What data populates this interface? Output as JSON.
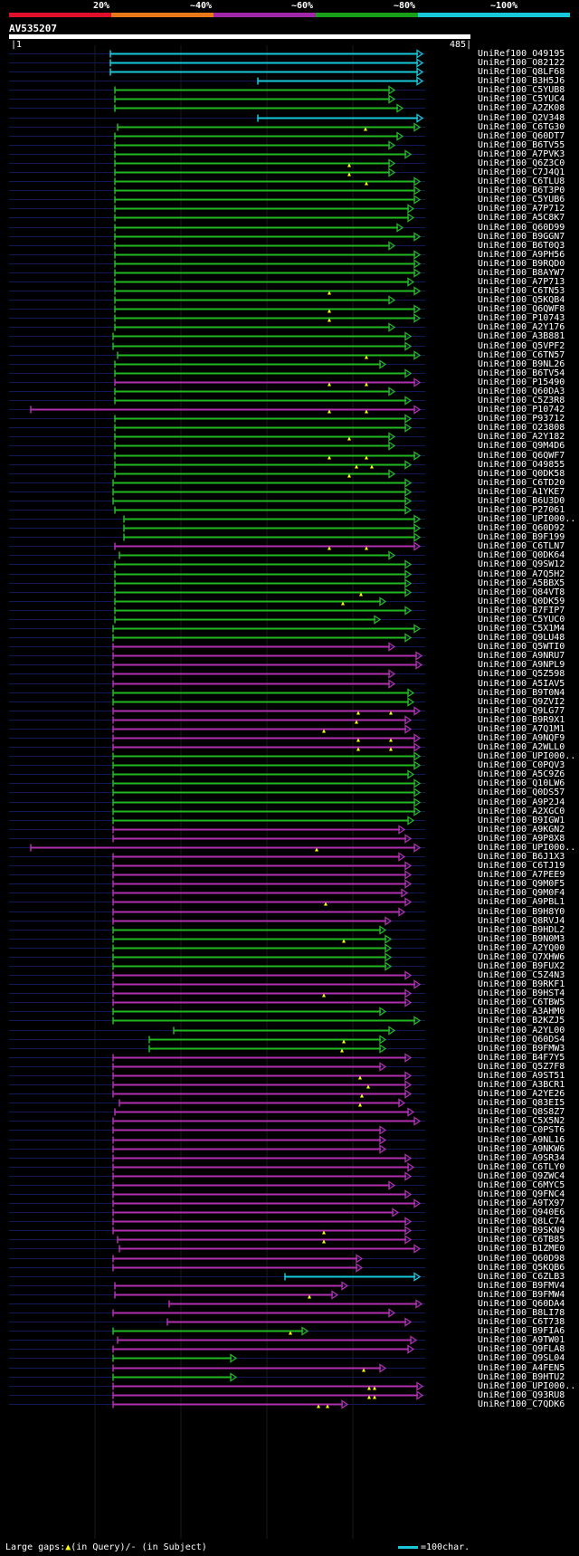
{
  "scale": {
    "labels": [
      "20%",
      "~40%",
      "~60%",
      "~80%",
      "~100%"
    ],
    "colors": [
      "#e0102a",
      "#e87818",
      "#a028a8",
      "#18a018",
      "#18c8d8"
    ]
  },
  "query": {
    "id": "AV535207",
    "start": "1",
    "end": "485"
  },
  "colors": {
    "cyan": "#18c8d8",
    "green": "#22b822",
    "magenta": "#b030b0",
    "gapline": "#101858",
    "gap_marker": "#ffff00"
  },
  "hits": [
    {
      "name": "UniRef100_O49195",
      "c": "c",
      "s": 122,
      "e": 467,
      "g": []
    },
    {
      "name": "UniRef100_O82122",
      "c": "c",
      "s": 122,
      "e": 467,
      "g": []
    },
    {
      "name": "UniRef100_Q8LF68",
      "c": "c",
      "s": 122,
      "e": 467,
      "g": []
    },
    {
      "name": "UniRef100_B3H5J6",
      "c": "c",
      "s": 285,
      "e": 467,
      "g": []
    },
    {
      "name": "UniRef100_C5YUB8",
      "c": "g",
      "s": 127,
      "e": 436,
      "g": []
    },
    {
      "name": "UniRef100_C5YUC4",
      "c": "g",
      "s": 127,
      "e": 436,
      "g": []
    },
    {
      "name": "UniRef100_A2ZK08",
      "c": "g",
      "s": 127,
      "e": 445,
      "g": []
    },
    {
      "name": "UniRef100_Q2V348",
      "c": "c",
      "s": 285,
      "e": 467,
      "g": []
    },
    {
      "name": "UniRef100_C6TG30",
      "c": "g",
      "s": 130,
      "e": 464,
      "g": [
        404
      ]
    },
    {
      "name": "UniRef100_Q60DT7",
      "c": "g",
      "s": 127,
      "e": 445,
      "g": []
    },
    {
      "name": "UniRef100_B6TV55",
      "c": "g",
      "s": 127,
      "e": 436,
      "g": []
    },
    {
      "name": "UniRef100_A7PVK3",
      "c": "g",
      "s": 127,
      "e": 454,
      "g": []
    },
    {
      "name": "UniRef100_Q6Z3C0",
      "c": "g",
      "s": 127,
      "e": 436,
      "g": [
        386
      ]
    },
    {
      "name": "UniRef100_C7J4Q1",
      "c": "g",
      "s": 127,
      "e": 436,
      "g": [
        386
      ]
    },
    {
      "name": "UniRef100_C6TLU8",
      "c": "g",
      "s": 127,
      "e": 464,
      "g": [
        405
      ]
    },
    {
      "name": "UniRef100_B6T3P0",
      "c": "g",
      "s": 127,
      "e": 464,
      "g": []
    },
    {
      "name": "UniRef100_C5YUB6",
      "c": "g",
      "s": 127,
      "e": 464,
      "g": []
    },
    {
      "name": "UniRef100_A7P712",
      "c": "g",
      "s": 127,
      "e": 457,
      "g": []
    },
    {
      "name": "UniRef100_A5C8K7",
      "c": "g",
      "s": 127,
      "e": 457,
      "g": []
    },
    {
      "name": "UniRef100_Q60D99",
      "c": "g",
      "s": 127,
      "e": 445,
      "g": []
    },
    {
      "name": "UniRef100_B9GGN7",
      "c": "g",
      "s": 127,
      "e": 464,
      "g": []
    },
    {
      "name": "UniRef100_B6T0Q3",
      "c": "g",
      "s": 127,
      "e": 436,
      "g": []
    },
    {
      "name": "UniRef100_A9PH56",
      "c": "g",
      "s": 127,
      "e": 464,
      "g": []
    },
    {
      "name": "UniRef100_B9RQD0",
      "c": "g",
      "s": 127,
      "e": 464,
      "g": []
    },
    {
      "name": "UniRef100_B8AYW7",
      "c": "g",
      "s": 127,
      "e": 464,
      "g": []
    },
    {
      "name": "UniRef100_A7P713",
      "c": "g",
      "s": 127,
      "e": 457,
      "g": []
    },
    {
      "name": "UniRef100_C6TN53",
      "c": "g",
      "s": 127,
      "e": 464,
      "g": [
        364
      ]
    },
    {
      "name": "UniRef100_Q5KQB4",
      "c": "g",
      "s": 127,
      "e": 436,
      "g": []
    },
    {
      "name": "UniRef100_Q6QWF8",
      "c": "g",
      "s": 127,
      "e": 464,
      "g": [
        364
      ]
    },
    {
      "name": "UniRef100_P10743",
      "c": "g",
      "s": 127,
      "e": 464,
      "g": [
        364
      ]
    },
    {
      "name": "UniRef100_A2Y176",
      "c": "g",
      "s": 127,
      "e": 436,
      "g": []
    },
    {
      "name": "UniRef100_A3B881",
      "c": "g",
      "s": 125,
      "e": 454,
      "g": []
    },
    {
      "name": "UniRef100_Q5VPF2",
      "c": "g",
      "s": 125,
      "e": 454,
      "g": []
    },
    {
      "name": "UniRef100_C6TN57",
      "c": "g",
      "s": 130,
      "e": 464,
      "g": [
        405
      ]
    },
    {
      "name": "UniRef100_B9NL26",
      "c": "g",
      "s": 127,
      "e": 426,
      "g": []
    },
    {
      "name": "UniRef100_B6TV54",
      "c": "g",
      "s": 127,
      "e": 454,
      "g": []
    },
    {
      "name": "UniRef100_P15490",
      "c": "m",
      "s": 127,
      "e": 464,
      "g": [
        364,
        405
      ]
    },
    {
      "name": "UniRef100_Q60DA3",
      "c": "g",
      "s": 127,
      "e": 436,
      "g": []
    },
    {
      "name": "UniRef100_C5Z3R8",
      "c": "g",
      "s": 127,
      "e": 454,
      "g": []
    },
    {
      "name": "UniRef100_P10742",
      "c": "m",
      "s": 34,
      "e": 464,
      "g": [
        364,
        405
      ]
    },
    {
      "name": "UniRef100_P93712",
      "c": "g",
      "s": 127,
      "e": 454,
      "g": []
    },
    {
      "name": "UniRef100_O23808",
      "c": "g",
      "s": 127,
      "e": 454,
      "g": []
    },
    {
      "name": "UniRef100_A2Y182",
      "c": "g",
      "s": 127,
      "e": 436,
      "g": [
        386
      ]
    },
    {
      "name": "UniRef100_Q9M4D6",
      "c": "g",
      "s": 127,
      "e": 436,
      "g": []
    },
    {
      "name": "UniRef100_Q6QWF7",
      "c": "g",
      "s": 127,
      "e": 464,
      "g": [
        364,
        405
      ]
    },
    {
      "name": "UniRef100_O49855",
      "c": "g",
      "s": 127,
      "e": 454,
      "g": [
        394,
        411
      ]
    },
    {
      "name": "UniRef100_Q0DK58",
      "c": "g",
      "s": 127,
      "e": 436,
      "g": [
        386
      ]
    },
    {
      "name": "UniRef100_C6TD20",
      "c": "g",
      "s": 125,
      "e": 454,
      "g": []
    },
    {
      "name": "UniRef100_A1YKE7",
      "c": "g",
      "s": 125,
      "e": 454,
      "g": []
    },
    {
      "name": "UniRef100_B6U3D0",
      "c": "g",
      "s": 125,
      "e": 454,
      "g": []
    },
    {
      "name": "UniRef100_P27061",
      "c": "g",
      "s": 127,
      "e": 454,
      "g": []
    },
    {
      "name": "UniRef100_UPI000..",
      "c": "g",
      "s": 137,
      "e": 464,
      "g": []
    },
    {
      "name": "UniRef100_Q60D92",
      "c": "g",
      "s": 137,
      "e": 464,
      "g": []
    },
    {
      "name": "UniRef100_B9F199",
      "c": "g",
      "s": 137,
      "e": 464,
      "g": []
    },
    {
      "name": "UniRef100_C6TLN7",
      "c": "m",
      "s": 127,
      "e": 464,
      "g": [
        364,
        405
      ]
    },
    {
      "name": "UniRef100_Q0DK64",
      "c": "g",
      "s": 132,
      "e": 436,
      "g": []
    },
    {
      "name": "UniRef100_Q9SW12",
      "c": "g",
      "s": 127,
      "e": 454,
      "g": []
    },
    {
      "name": "UniRef100_A7Q5H2",
      "c": "g",
      "s": 127,
      "e": 454,
      "g": []
    },
    {
      "name": "UniRef100_A5BBX5",
      "c": "g",
      "s": 127,
      "e": 454,
      "g": []
    },
    {
      "name": "UniRef100_Q84VT8",
      "c": "g",
      "s": 127,
      "e": 454,
      "g": [
        399
      ]
    },
    {
      "name": "UniRef100_Q0DK59",
      "c": "g",
      "s": 127,
      "e": 426,
      "g": [
        379
      ]
    },
    {
      "name": "UniRef100_B7FIP7",
      "c": "g",
      "s": 127,
      "e": 454,
      "g": []
    },
    {
      "name": "UniRef100_C5YUC0",
      "c": "g",
      "s": 127,
      "e": 420,
      "g": []
    },
    {
      "name": "UniRef100_C5X1M4",
      "c": "g",
      "s": 125,
      "e": 464,
      "g": []
    },
    {
      "name": "UniRef100_Q9LU48",
      "c": "g",
      "s": 125,
      "e": 454,
      "g": []
    },
    {
      "name": "UniRef100_Q5WTI0",
      "c": "m",
      "s": 125,
      "e": 436,
      "g": []
    },
    {
      "name": "UniRef100_A9NRU7",
      "c": "m",
      "s": 125,
      "e": 466,
      "g": []
    },
    {
      "name": "UniRef100_A9NPL9",
      "c": "m",
      "s": 125,
      "e": 466,
      "g": []
    },
    {
      "name": "UniRef100_Q5Z598",
      "c": "m",
      "s": 125,
      "e": 436,
      "g": []
    },
    {
      "name": "UniRef100_A5IAV5",
      "c": "m",
      "s": 125,
      "e": 436,
      "g": []
    },
    {
      "name": "UniRef100_B9T0N4",
      "c": "g",
      "s": 125,
      "e": 457,
      "g": []
    },
    {
      "name": "UniRef100_Q9ZVI2",
      "c": "g",
      "s": 125,
      "e": 457,
      "g": []
    },
    {
      "name": "UniRef100_Q9LG77",
      "c": "m",
      "s": 125,
      "e": 464,
      "g": [
        396,
        432
      ]
    },
    {
      "name": "UniRef100_B9R9X1",
      "c": "m",
      "s": 125,
      "e": 454,
      "g": [
        394
      ]
    },
    {
      "name": "UniRef100_A7Q1M1",
      "c": "m",
      "s": 125,
      "e": 454,
      "g": [
        358
      ]
    },
    {
      "name": "UniRef100_A9NQF9",
      "c": "m",
      "s": 125,
      "e": 464,
      "g": [
        396,
        432
      ]
    },
    {
      "name": "UniRef100_A2WLL0",
      "c": "m",
      "s": 125,
      "e": 464,
      "g": [
        396,
        432
      ]
    },
    {
      "name": "UniRef100_UPI000..",
      "c": "g",
      "s": 125,
      "e": 464,
      "g": []
    },
    {
      "name": "UniRef100_C0PQV3",
      "c": "g",
      "s": 125,
      "e": 464,
      "g": []
    },
    {
      "name": "UniRef100_A5C9Z6",
      "c": "g",
      "s": 125,
      "e": 457,
      "g": []
    },
    {
      "name": "UniRef100_Q10LW6",
      "c": "g",
      "s": 125,
      "e": 464,
      "g": []
    },
    {
      "name": "UniRef100_Q0DS57",
      "c": "g",
      "s": 125,
      "e": 464,
      "g": []
    },
    {
      "name": "UniRef100_A9P2J4",
      "c": "g",
      "s": 125,
      "e": 464,
      "g": []
    },
    {
      "name": "UniRef100_A2XGC0",
      "c": "g",
      "s": 125,
      "e": 464,
      "g": []
    },
    {
      "name": "UniRef100_B9IGW1",
      "c": "g",
      "s": 125,
      "e": 457,
      "g": []
    },
    {
      "name": "UniRef100_A9KGN2",
      "c": "m",
      "s": 125,
      "e": 447,
      "g": []
    },
    {
      "name": "UniRef100_A9P8X8",
      "c": "m",
      "s": 125,
      "e": 454,
      "g": []
    },
    {
      "name": "UniRef100_UPI000..",
      "c": "m",
      "s": 34,
      "e": 464,
      "g": [
        350
      ]
    },
    {
      "name": "UniRef100_B6J1X3",
      "c": "m",
      "s": 125,
      "e": 447,
      "g": []
    },
    {
      "name": "UniRef100_C6TJ19",
      "c": "m",
      "s": 125,
      "e": 454,
      "g": []
    },
    {
      "name": "UniRef100_A7PEE9",
      "c": "m",
      "s": 125,
      "e": 454,
      "g": []
    },
    {
      "name": "UniRef100_Q9M0F5",
      "c": "m",
      "s": 125,
      "e": 454,
      "g": []
    },
    {
      "name": "UniRef100_Q9M0F4",
      "c": "m",
      "s": 125,
      "e": 450,
      "g": []
    },
    {
      "name": "UniRef100_A9PBL1",
      "c": "m",
      "s": 125,
      "e": 454,
      "g": [
        360
      ]
    },
    {
      "name": "UniRef100_B9H8Y0",
      "c": "m",
      "s": 125,
      "e": 447,
      "g": []
    },
    {
      "name": "UniRef100_Q8RVJ4",
      "c": "m",
      "s": 125,
      "e": 432,
      "g": []
    },
    {
      "name": "UniRef100_B9HDL2",
      "c": "g",
      "s": 125,
      "e": 426,
      "g": []
    },
    {
      "name": "UniRef100_B9N0M3",
      "c": "g",
      "s": 125,
      "e": 432,
      "g": [
        380
      ]
    },
    {
      "name": "UniRef100_A2YQ00",
      "c": "g",
      "s": 125,
      "e": 432,
      "g": []
    },
    {
      "name": "UniRef100_Q7XHW6",
      "c": "g",
      "s": 125,
      "e": 432,
      "g": []
    },
    {
      "name": "UniRef100_B9FUX2",
      "c": "g",
      "s": 125,
      "e": 432,
      "g": []
    },
    {
      "name": "UniRef100_C5Z4N3",
      "c": "m",
      "s": 125,
      "e": 454,
      "g": []
    },
    {
      "name": "UniRef100_B9RKF1",
      "c": "m",
      "s": 125,
      "e": 464,
      "g": []
    },
    {
      "name": "UniRef100_B9HST4",
      "c": "m",
      "s": 125,
      "e": 454,
      "g": [
        358
      ]
    },
    {
      "name": "UniRef100_C6TBW5",
      "c": "m",
      "s": 125,
      "e": 454,
      "g": []
    },
    {
      "name": "UniRef100_A3AHM0",
      "c": "g",
      "s": 125,
      "e": 426,
      "g": []
    },
    {
      "name": "UniRef100_B2KZJ5",
      "c": "g",
      "s": 125,
      "e": 464,
      "g": []
    },
    {
      "name": "UniRef100_A2YL00",
      "c": "g",
      "s": 192,
      "e": 436,
      "g": []
    },
    {
      "name": "UniRef100_Q60DS4",
      "c": "g",
      "s": 165,
      "e": 426,
      "g": [
        380
      ]
    },
    {
      "name": "UniRef100_B9FMW3",
      "c": "g",
      "s": 165,
      "e": 426,
      "g": [
        378
      ]
    },
    {
      "name": "UniRef100_B4F7Y5",
      "c": "m",
      "s": 125,
      "e": 454,
      "g": []
    },
    {
      "name": "UniRef100_Q5Z7F8",
      "c": "m",
      "s": 125,
      "e": 426,
      "g": []
    },
    {
      "name": "UniRef100_A9ST51",
      "c": "m",
      "s": 125,
      "e": 454,
      "g": [
        398
      ]
    },
    {
      "name": "UniRef100_A3BCR1",
      "c": "m",
      "s": 125,
      "e": 454,
      "g": [
        407
      ]
    },
    {
      "name": "UniRef100_A2YE26",
      "c": "m",
      "s": 125,
      "e": 454,
      "g": [
        400
      ]
    },
    {
      "name": "UniRef100_Q83EI5",
      "c": "m",
      "s": 132,
      "e": 447,
      "g": [
        398
      ]
    },
    {
      "name": "UniRef100_Q8S8Z7",
      "c": "m",
      "s": 127,
      "e": 457,
      "g": []
    },
    {
      "name": "UniRef100_C5X5N2",
      "c": "m",
      "s": 125,
      "e": 464,
      "g": []
    },
    {
      "name": "UniRef100_C0PST6",
      "c": "m",
      "s": 125,
      "e": 426,
      "g": []
    },
    {
      "name": "UniRef100_A9NL16",
      "c": "m",
      "s": 125,
      "e": 426,
      "g": []
    },
    {
      "name": "UniRef100_A9NKW6",
      "c": "m",
      "s": 125,
      "e": 426,
      "g": []
    },
    {
      "name": "UniRef100_A9SR34",
      "c": "m",
      "s": 125,
      "e": 454,
      "g": []
    },
    {
      "name": "UniRef100_C6TLY0",
      "c": "m",
      "s": 125,
      "e": 457,
      "g": []
    },
    {
      "name": "UniRef100_Q9ZWC4",
      "c": "m",
      "s": 125,
      "e": 454,
      "g": []
    },
    {
      "name": "UniRef100_C6MYC5",
      "c": "m",
      "s": 125,
      "e": 436,
      "g": []
    },
    {
      "name": "UniRef100_Q9FNC4",
      "c": "m",
      "s": 125,
      "e": 454,
      "g": []
    },
    {
      "name": "UniRef100_A9TX97",
      "c": "m",
      "s": 125,
      "e": 464,
      "g": []
    },
    {
      "name": "UniRef100_Q940E6",
      "c": "m",
      "s": 125,
      "e": 440,
      "g": []
    },
    {
      "name": "UniRef100_Q8LC74",
      "c": "m",
      "s": 125,
      "e": 454,
      "g": []
    },
    {
      "name": "UniRef100_B9SKN9",
      "c": "m",
      "s": 125,
      "e": 454,
      "g": [
        358
      ]
    },
    {
      "name": "UniRef100_C6TB85",
      "c": "m",
      "s": 130,
      "e": 454,
      "g": [
        358
      ]
    },
    {
      "name": "UniRef100_B1ZME0",
      "c": "m",
      "s": 132,
      "e": 464,
      "g": []
    },
    {
      "name": "UniRef100_Q60D98",
      "c": "m",
      "s": 125,
      "e": 400,
      "g": []
    },
    {
      "name": "UniRef100_Q5KQB6",
      "c": "m",
      "s": 125,
      "e": 400,
      "g": []
    },
    {
      "name": "UniRef100_C6ZLB3",
      "c": "c",
      "s": 315,
      "e": 464,
      "g": []
    },
    {
      "name": "UniRef100_B9FMV4",
      "c": "m",
      "s": 127,
      "e": 384,
      "g": []
    },
    {
      "name": "UniRef100_B9FMW4",
      "c": "m",
      "s": 127,
      "e": 373,
      "g": [
        342
      ]
    },
    {
      "name": "UniRef100_Q60DA4",
      "c": "m",
      "s": 187,
      "e": 466,
      "g": []
    },
    {
      "name": "UniRef100_B8LI78",
      "c": "m",
      "s": 125,
      "e": 436,
      "g": []
    },
    {
      "name": "UniRef100_C6T738",
      "c": "m",
      "s": 185,
      "e": 454,
      "g": []
    },
    {
      "name": "UniRef100_B9FIA6",
      "c": "g",
      "s": 125,
      "e": 340,
      "g": [
        321
      ]
    },
    {
      "name": "UniRef100_A9TW01",
      "c": "m",
      "s": 130,
      "e": 460,
      "g": []
    },
    {
      "name": "UniRef100_Q9FLA8",
      "c": "m",
      "s": 125,
      "e": 457,
      "g": []
    },
    {
      "name": "UniRef100_Q9SL04",
      "c": "g",
      "s": 125,
      "e": 261,
      "g": []
    },
    {
      "name": "UniRef100_A4FEN5",
      "c": "m",
      "s": 125,
      "e": 426,
      "g": [
        402
      ]
    },
    {
      "name": "UniRef100_B9HTU2",
      "c": "g",
      "s": 125,
      "e": 261,
      "g": []
    },
    {
      "name": "UniRef100_UPI000..",
      "c": "m",
      "s": 125,
      "e": 467,
      "g": [
        408,
        414
      ]
    },
    {
      "name": "UniRef100_Q93RU8",
      "c": "m",
      "s": 125,
      "e": 467,
      "g": [
        408,
        414
      ]
    },
    {
      "name": "UniRef100_C7QDK6",
      "c": "m",
      "s": 125,
      "e": 384,
      "g": [
        352,
        362
      ]
    }
  ],
  "footer": {
    "large_gaps": "Large gaps:",
    "in_query": "(in Query)/",
    "in_subject": "- (in Subject)",
    "scale_note": "=100char."
  }
}
